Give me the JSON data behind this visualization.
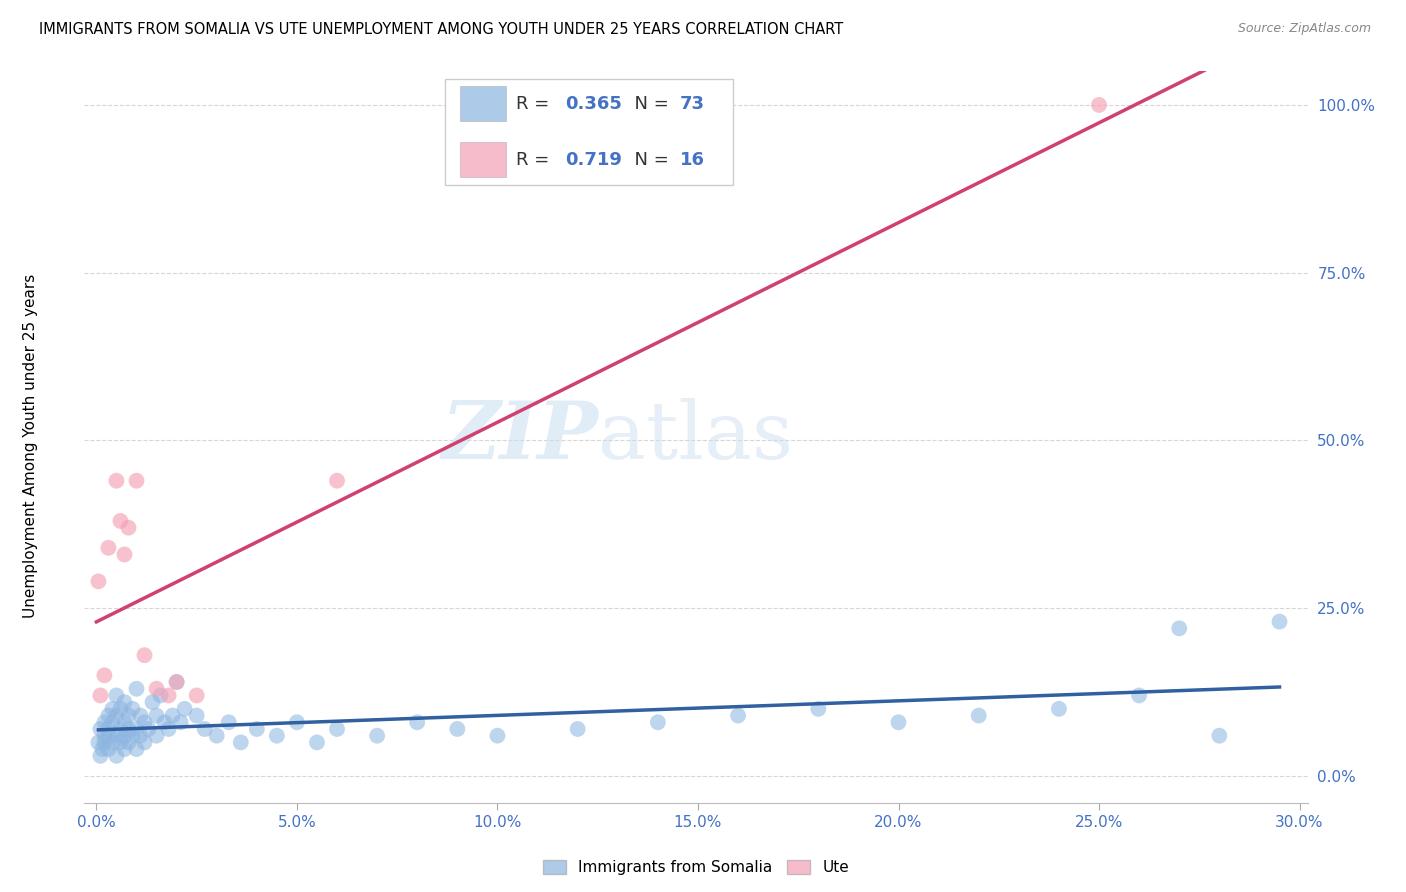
{
  "title": "IMMIGRANTS FROM SOMALIA VS UTE UNEMPLOYMENT AMONG YOUTH UNDER 25 YEARS CORRELATION CHART",
  "source": "Source: ZipAtlas.com",
  "xlabel_ticks": [
    "0.0%",
    "5.0%",
    "10.0%",
    "15.0%",
    "20.0%",
    "25.0%",
    "30.0%"
  ],
  "ylabel_ticks": [
    "0.0%",
    "25.0%",
    "50.0%",
    "75.0%",
    "100.0%"
  ],
  "ylabel_label": "Unemployment Among Youth under 25 years",
  "legend_label1": "Immigrants from Somalia",
  "legend_label2": "Ute",
  "R1": "0.365",
  "N1": "73",
  "R2": "0.719",
  "N2": "16",
  "watermark_zip": "ZIP",
  "watermark_atlas": "atlas",
  "blue_color": "#8ab4e0",
  "pink_color": "#f4a0b5",
  "line_blue": "#3060a0",
  "line_pink": "#d04070",
  "somalia_x": [
    0.0005,
    0.001,
    0.001,
    0.0015,
    0.002,
    0.002,
    0.002,
    0.003,
    0.003,
    0.003,
    0.003,
    0.004,
    0.004,
    0.004,
    0.005,
    0.005,
    0.005,
    0.005,
    0.006,
    0.006,
    0.006,
    0.007,
    0.007,
    0.007,
    0.007,
    0.008,
    0.008,
    0.008,
    0.009,
    0.009,
    0.01,
    0.01,
    0.01,
    0.011,
    0.011,
    0.012,
    0.012,
    0.013,
    0.014,
    0.015,
    0.015,
    0.016,
    0.017,
    0.018,
    0.019,
    0.02,
    0.021,
    0.022,
    0.025,
    0.027,
    0.03,
    0.033,
    0.036,
    0.04,
    0.045,
    0.05,
    0.055,
    0.06,
    0.07,
    0.08,
    0.09,
    0.1,
    0.12,
    0.14,
    0.16,
    0.18,
    0.2,
    0.22,
    0.24,
    0.26,
    0.27,
    0.28,
    0.295
  ],
  "somalia_y": [
    0.05,
    0.03,
    0.07,
    0.04,
    0.06,
    0.08,
    0.05,
    0.04,
    0.07,
    0.09,
    0.06,
    0.05,
    0.08,
    0.1,
    0.03,
    0.06,
    0.09,
    0.12,
    0.05,
    0.07,
    0.1,
    0.04,
    0.06,
    0.08,
    0.11,
    0.05,
    0.07,
    0.09,
    0.06,
    0.1,
    0.04,
    0.07,
    0.13,
    0.06,
    0.09,
    0.05,
    0.08,
    0.07,
    0.11,
    0.06,
    0.09,
    0.12,
    0.08,
    0.07,
    0.09,
    0.14,
    0.08,
    0.1,
    0.09,
    0.07,
    0.06,
    0.08,
    0.05,
    0.07,
    0.06,
    0.08,
    0.05,
    0.07,
    0.06,
    0.08,
    0.07,
    0.06,
    0.07,
    0.08,
    0.09,
    0.1,
    0.08,
    0.09,
    0.1,
    0.12,
    0.22,
    0.06,
    0.23
  ],
  "ute_x": [
    0.0005,
    0.001,
    0.002,
    0.003,
    0.005,
    0.006,
    0.007,
    0.008,
    0.01,
    0.012,
    0.015,
    0.018,
    0.02,
    0.025,
    0.06,
    0.25
  ],
  "ute_y": [
    0.29,
    0.12,
    0.15,
    0.34,
    0.44,
    0.38,
    0.33,
    0.37,
    0.44,
    0.18,
    0.13,
    0.12,
    0.14,
    0.12,
    0.44,
    1.0
  ],
  "xlim_min": -0.003,
  "xlim_max": 0.302,
  "ylim_min": -0.04,
  "ylim_max": 1.05,
  "x_tick_vals": [
    0.0,
    0.05,
    0.1,
    0.15,
    0.2,
    0.25,
    0.3
  ],
  "y_tick_vals": [
    0.0,
    0.25,
    0.5,
    0.75,
    1.0
  ]
}
